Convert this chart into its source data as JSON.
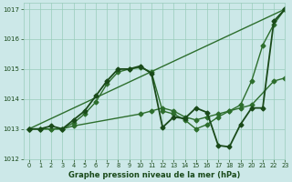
{
  "bg_color": "#cce8e8",
  "grid_color": "#99ccbb",
  "line_color": "#2d6e2d",
  "line_color_dark": "#1a4a1a",
  "title": "Graphe pression niveau de la mer (hPa)",
  "xlim": [
    -0.5,
    23
  ],
  "ylim": [
    1012,
    1017.2
  ],
  "yticks": [
    1012,
    1013,
    1014,
    1015,
    1016,
    1017
  ],
  "xticks": [
    0,
    1,
    2,
    3,
    4,
    5,
    6,
    7,
    8,
    9,
    10,
    11,
    12,
    13,
    14,
    15,
    16,
    17,
    18,
    19,
    20,
    21,
    22,
    23
  ],
  "lines": [
    {
      "x": [
        0,
        23
      ],
      "y": [
        1013.0,
        1017.0
      ],
      "color": "#2d6e2d",
      "lw": 1.0,
      "marker": "D",
      "ms": 2.5,
      "style": "-"
    },
    {
      "x": [
        0,
        1,
        2,
        3,
        4,
        10,
        11,
        12,
        13,
        14,
        15,
        16,
        17,
        18,
        19,
        20,
        22,
        23
      ],
      "y": [
        1013.0,
        1013.0,
        1013.0,
        1013.0,
        1013.1,
        1013.5,
        1013.6,
        1013.7,
        1013.6,
        1013.4,
        1013.3,
        1013.4,
        1013.5,
        1013.6,
        1013.7,
        1013.8,
        1014.6,
        1014.7
      ],
      "color": "#2d6e2d",
      "lw": 1.0,
      "marker": "D",
      "ms": 2.5,
      "style": "-"
    },
    {
      "x": [
        0,
        1,
        2,
        3,
        4,
        5,
        6,
        7,
        8,
        9,
        10,
        11,
        12,
        13,
        14,
        15,
        16,
        17,
        18,
        19,
        20,
        21,
        22,
        23
      ],
      "y": [
        1013.0,
        1013.0,
        1013.0,
        1013.0,
        1013.2,
        1013.5,
        1013.9,
        1014.5,
        1014.9,
        1015.0,
        1015.05,
        1014.9,
        1013.6,
        1013.5,
        1013.3,
        1013.0,
        1013.15,
        1013.4,
        1013.6,
        1013.8,
        1014.6,
        1015.8,
        1016.5,
        1017.0
      ],
      "color": "#2d6e2d",
      "lw": 1.0,
      "marker": "D",
      "ms": 2.5,
      "style": "-"
    },
    {
      "x": [
        0,
        1,
        2,
        3,
        4,
        5,
        6,
        7,
        8,
        9,
        10,
        11,
        12,
        13,
        14,
        15,
        16,
        17,
        18,
        19,
        20,
        21,
        22,
        23
      ],
      "y": [
        1013.0,
        1013.0,
        1013.1,
        1013.0,
        1013.3,
        1013.6,
        1014.1,
        1014.6,
        1015.0,
        1015.0,
        1015.1,
        1014.85,
        1013.05,
        1013.4,
        1013.35,
        1013.7,
        1013.55,
        1012.45,
        1012.4,
        1013.15,
        1013.7,
        1013.7,
        1016.6,
        1017.0
      ],
      "color": "#1a4a1a",
      "lw": 1.3,
      "marker": "D",
      "ms": 2.5,
      "style": "-"
    }
  ]
}
